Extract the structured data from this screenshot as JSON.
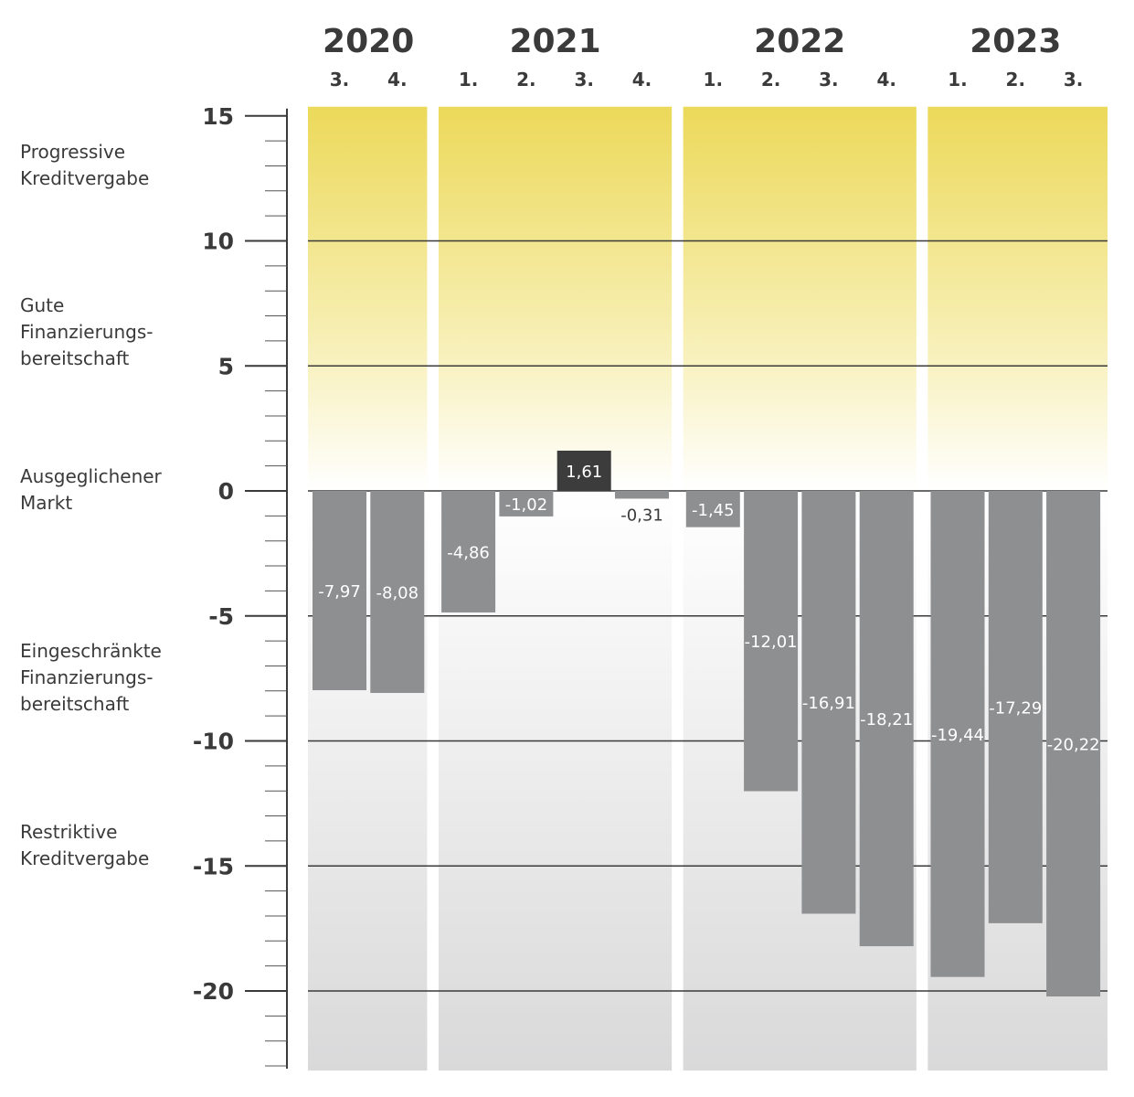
{
  "chart_data": {
    "type": "bar",
    "years": [
      {
        "label": "2020",
        "quarters": 2
      },
      {
        "label": "2021",
        "quarters": 4
      },
      {
        "label": "2022",
        "quarters": 4
      },
      {
        "label": "2023",
        "quarters": 3
      }
    ],
    "categories": [
      "3.",
      "4.",
      "1.",
      "2.",
      "3.",
      "4.",
      "1.",
      "2.",
      "3.",
      "4.",
      "1.",
      "2.",
      "3."
    ],
    "values": [
      -7.97,
      -8.08,
      -4.86,
      -1.02,
      1.61,
      -0.31,
      -1.45,
      -12.01,
      -16.91,
      -18.21,
      -19.44,
      -17.29,
      -20.22
    ],
    "value_labels": [
      "-7,97",
      "-8,08",
      "-4,86",
      "-1,02",
      "1,61",
      "-0,31",
      "-1,45",
      "-12,01",
      "-16,91",
      "-18,21",
      "-19,44",
      "-17,29",
      "-20,22"
    ],
    "ylim": [
      -23,
      15
    ],
    "yticks": [
      15,
      10,
      5,
      0,
      -5,
      -10,
      -15,
      -20
    ],
    "ytick_labels": [
      "15",
      "10",
      "5",
      "0",
      "-5",
      "-10",
      "-15",
      "-20"
    ],
    "gridlines": [
      10,
      5,
      0,
      -5,
      -10,
      -15,
      -20
    ],
    "zones": [
      {
        "lines": [
          "Progressive",
          "Kreditvergabe"
        ]
      },
      {
        "lines": [
          "Gute",
          "Finanzierungs-",
          "bereitschaft"
        ]
      },
      {
        "lines": [
          "Ausgeglichener",
          "Markt"
        ]
      },
      {
        "lines": [
          "Eingeschränkte",
          "Finanzierungs-",
          "bereitschaft"
        ]
      },
      {
        "lines": [
          "Restriktive",
          "Kreditvergabe"
        ]
      }
    ],
    "colors": {
      "negative_bar": "#8e8f91",
      "positive_bar": "#3c3c3c",
      "positive_zone_top": "#ecd95a",
      "negative_zone_bottom": "#d9d9da",
      "gridline": "#3a3a3a",
      "text": "#3a3a3a"
    }
  }
}
